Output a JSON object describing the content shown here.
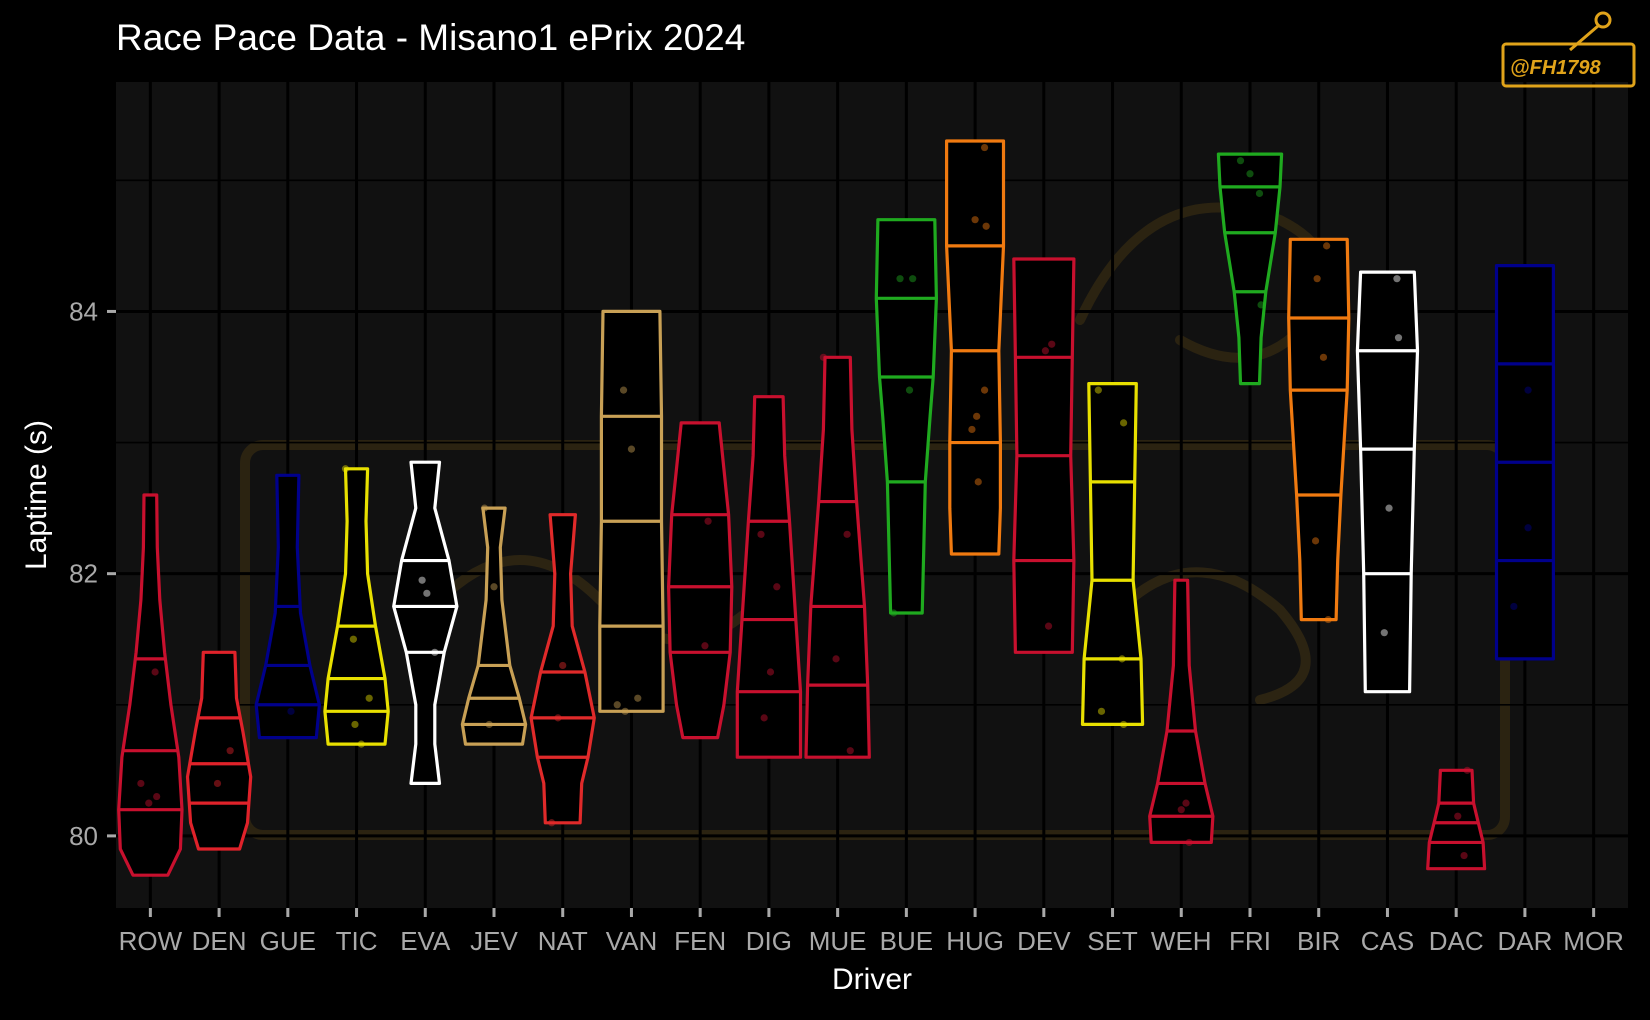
{
  "chart_data": {
    "type": "violin",
    "title": "Race Pace Data - Misano1 ePrix 2024",
    "xlabel": "Driver",
    "ylabel": "Laptime (s)",
    "ylim": [
      79.45,
      85.75
    ],
    "yticks": [
      80,
      82,
      84
    ],
    "grid": true,
    "legend": "none",
    "watermark": "@FH1798",
    "colors": {
      "background": "#000000",
      "panel": "#111111",
      "grid": "#000000",
      "tick": "#a9a9a9",
      "watermark": "#e0a31a"
    },
    "drivers": [
      {
        "name": "ROW",
        "color": "#c8102e",
        "min": 79.7,
        "max": 82.6,
        "q1": 80.2,
        "median": 80.65,
        "q3": 81.35,
        "profile": [
          [
            79.7,
            0.55
          ],
          [
            79.9,
            0.95
          ],
          [
            80.2,
            1.0
          ],
          [
            80.6,
            0.9
          ],
          [
            81.0,
            0.65
          ],
          [
            81.4,
            0.45
          ],
          [
            81.8,
            0.3
          ],
          [
            82.2,
            0.22
          ],
          [
            82.6,
            0.2
          ]
        ],
        "points": [
          [
            -0.05,
            80.25
          ],
          [
            0.2,
            80.3
          ],
          [
            -0.3,
            80.4
          ],
          [
            0.15,
            81.25
          ]
        ]
      },
      {
        "name": "DEN",
        "color": "#e0222a",
        "min": 79.9,
        "max": 81.4,
        "q1": 80.25,
        "median": 80.55,
        "q3": 80.9,
        "profile": [
          [
            79.9,
            0.65
          ],
          [
            80.1,
            0.9
          ],
          [
            80.45,
            1.0
          ],
          [
            80.8,
            0.75
          ],
          [
            81.05,
            0.55
          ],
          [
            81.4,
            0.5
          ]
        ],
        "points": [
          [
            -0.05,
            80.4
          ],
          [
            0.35,
            80.65
          ]
        ]
      },
      {
        "name": "GUE",
        "color": "#00008b",
        "min": 80.75,
        "max": 82.75,
        "q1": 81.0,
        "median": 81.3,
        "q3": 81.75,
        "profile": [
          [
            80.75,
            0.9
          ],
          [
            81.0,
            1.0
          ],
          [
            81.3,
            0.7
          ],
          [
            81.7,
            0.4
          ],
          [
            82.2,
            0.3
          ],
          [
            82.75,
            0.35
          ]
        ],
        "points": [
          [
            0.1,
            80.95
          ]
        ]
      },
      {
        "name": "TIC",
        "color": "#e8e000",
        "min": 80.7,
        "max": 82.8,
        "q1": 80.95,
        "median": 81.2,
        "q3": 81.6,
        "profile": [
          [
            80.7,
            0.9
          ],
          [
            80.95,
            1.0
          ],
          [
            81.2,
            0.9
          ],
          [
            81.6,
            0.6
          ],
          [
            82.0,
            0.35
          ],
          [
            82.4,
            0.3
          ],
          [
            82.8,
            0.35
          ]
        ],
        "points": [
          [
            -0.35,
            82.8
          ],
          [
            -0.1,
            81.5
          ],
          [
            -0.05,
            80.85
          ],
          [
            0.15,
            80.7
          ],
          [
            0.4,
            81.05
          ]
        ]
      },
      {
        "name": "EVA",
        "color": "#ffffff",
        "min": 80.4,
        "max": 82.85,
        "q1": 81.4,
        "median": 81.75,
        "q3": 82.1,
        "profile": [
          [
            80.4,
            0.45
          ],
          [
            80.7,
            0.3
          ],
          [
            81.0,
            0.3
          ],
          [
            81.4,
            0.6
          ],
          [
            81.75,
            1.0
          ],
          [
            82.1,
            0.75
          ],
          [
            82.5,
            0.3
          ],
          [
            82.85,
            0.45
          ]
        ],
        "points": [
          [
            -0.1,
            81.95
          ],
          [
            0.05,
            81.85
          ],
          [
            0.3,
            81.4
          ]
        ]
      },
      {
        "name": "JEV",
        "color": "#c8a055",
        "min": 80.7,
        "max": 82.5,
        "q1": 80.85,
        "median": 81.05,
        "q3": 81.3,
        "profile": [
          [
            80.7,
            0.9
          ],
          [
            80.85,
            1.0
          ],
          [
            81.05,
            0.8
          ],
          [
            81.3,
            0.5
          ],
          [
            81.8,
            0.25
          ],
          [
            82.2,
            0.2
          ],
          [
            82.5,
            0.35
          ]
        ],
        "points": [
          [
            -0.3,
            82.5
          ],
          [
            -0.15,
            80.85
          ],
          [
            0.0,
            81.9
          ]
        ]
      },
      {
        "name": "NAT",
        "color": "#e02a2a",
        "min": 80.1,
        "max": 82.45,
        "q1": 80.6,
        "median": 80.9,
        "q3": 81.25,
        "profile": [
          [
            80.1,
            0.55
          ],
          [
            80.4,
            0.6
          ],
          [
            80.6,
            0.8
          ],
          [
            80.9,
            1.0
          ],
          [
            81.25,
            0.7
          ],
          [
            81.6,
            0.3
          ],
          [
            82.0,
            0.25
          ],
          [
            82.45,
            0.4
          ]
        ],
        "points": [
          [
            -0.35,
            80.1
          ],
          [
            -0.15,
            80.9
          ],
          [
            0.0,
            81.3
          ]
        ]
      },
      {
        "name": "VAN",
        "color": "#c8a055",
        "min": 80.95,
        "max": 84.0,
        "q1": 81.6,
        "median": 82.4,
        "q3": 83.2,
        "profile": [
          [
            80.95,
            1.0
          ],
          [
            81.6,
            1.0
          ],
          [
            82.4,
            0.95
          ],
          [
            83.2,
            0.95
          ],
          [
            84.0,
            0.9
          ]
        ],
        "points": [
          [
            -0.45,
            81.0
          ],
          [
            0.2,
            81.05
          ],
          [
            -0.2,
            80.95
          ],
          [
            -0.25,
            83.4
          ],
          [
            0.0,
            82.95
          ]
        ]
      },
      {
        "name": "FEN",
        "color": "#c8102e",
        "min": 80.75,
        "max": 83.15,
        "q1": 81.4,
        "median": 81.9,
        "q3": 82.45,
        "profile": [
          [
            80.75,
            0.55
          ],
          [
            81.0,
            0.75
          ],
          [
            81.4,
            0.95
          ],
          [
            81.9,
            1.0
          ],
          [
            82.45,
            0.9
          ],
          [
            82.8,
            0.75
          ],
          [
            83.15,
            0.6
          ]
        ],
        "points": [
          [
            0.15,
            81.45
          ],
          [
            0.25,
            82.4
          ]
        ]
      },
      {
        "name": "DIG",
        "color": "#c8102e",
        "min": 80.6,
        "max": 83.35,
        "q1": 81.1,
        "median": 81.65,
        "q3": 82.4,
        "profile": [
          [
            80.6,
            1.0
          ],
          [
            81.1,
            1.0
          ],
          [
            81.65,
            0.85
          ],
          [
            82.4,
            0.65
          ],
          [
            82.9,
            0.5
          ],
          [
            83.35,
            0.45
          ]
        ],
        "points": [
          [
            -0.15,
            80.9
          ],
          [
            0.05,
            81.25
          ],
          [
            -0.25,
            82.3
          ],
          [
            0.25,
            81.9
          ]
        ]
      },
      {
        "name": "MUE",
        "color": "#c8102e",
        "min": 80.6,
        "max": 83.65,
        "q1": 81.15,
        "median": 81.75,
        "q3": 82.55,
        "profile": [
          [
            80.6,
            1.0
          ],
          [
            81.15,
            0.95
          ],
          [
            81.75,
            0.85
          ],
          [
            82.55,
            0.6
          ],
          [
            83.1,
            0.45
          ],
          [
            83.65,
            0.4
          ]
        ],
        "points": [
          [
            -0.45,
            83.65
          ],
          [
            -0.05,
            81.35
          ],
          [
            0.3,
            82.3
          ],
          [
            0.4,
            80.65
          ]
        ]
      },
      {
        "name": "BUE",
        "color": "#1faa1f",
        "min": 81.7,
        "max": 84.7,
        "q1": 82.7,
        "median": 83.5,
        "q3": 84.1,
        "profile": [
          [
            81.7,
            0.5
          ],
          [
            82.2,
            0.55
          ],
          [
            82.7,
            0.6
          ],
          [
            83.2,
            0.75
          ],
          [
            83.5,
            0.85
          ],
          [
            84.1,
            0.95
          ],
          [
            84.7,
            0.9
          ]
        ],
        "points": [
          [
            -0.4,
            81.7
          ],
          [
            0.1,
            83.4
          ],
          [
            0.2,
            84.25
          ],
          [
            -0.2,
            84.25
          ]
        ]
      },
      {
        "name": "HUG",
        "color": "#f07a10",
        "min": 82.15,
        "max": 85.3,
        "q1": 83.0,
        "median": 83.7,
        "q3": 84.5,
        "profile": [
          [
            82.15,
            0.75
          ],
          [
            82.5,
            0.8
          ],
          [
            83.0,
            0.8
          ],
          [
            83.7,
            0.75
          ],
          [
            84.5,
            0.9
          ],
          [
            85.3,
            0.9
          ]
        ],
        "points": [
          [
            -0.1,
            83.1
          ],
          [
            0.1,
            82.7
          ],
          [
            0.3,
            83.4
          ],
          [
            0.05,
            83.2
          ],
          [
            0.0,
            84.7
          ],
          [
            0.35,
            84.65
          ],
          [
            0.3,
            85.25
          ]
        ]
      },
      {
        "name": "DEV",
        "color": "#c8102e",
        "min": 81.4,
        "max": 84.4,
        "q1": 82.1,
        "median": 82.9,
        "q3": 83.65,
        "profile": [
          [
            81.4,
            0.9
          ],
          [
            82.1,
            0.95
          ],
          [
            82.9,
            0.85
          ],
          [
            83.65,
            0.9
          ],
          [
            84.4,
            0.95
          ]
        ],
        "points": [
          [
            0.15,
            81.6
          ],
          [
            0.25,
            83.75
          ],
          [
            0.05,
            83.7
          ]
        ]
      },
      {
        "name": "SET",
        "color": "#e8e000",
        "min": 80.85,
        "max": 83.45,
        "q1": 81.35,
        "median": 81.95,
        "q3": 82.7,
        "profile": [
          [
            80.85,
            0.95
          ],
          [
            81.35,
            0.9
          ],
          [
            81.95,
            0.65
          ],
          [
            82.7,
            0.7
          ],
          [
            83.45,
            0.75
          ]
        ],
        "points": [
          [
            -0.35,
            80.95
          ],
          [
            0.3,
            81.35
          ],
          [
            0.35,
            83.15
          ],
          [
            0.35,
            80.85
          ],
          [
            -0.45,
            83.4
          ]
        ]
      },
      {
        "name": "WEH",
        "color": "#c8102e",
        "min": 79.95,
        "max": 81.95,
        "q1": 80.15,
        "median": 80.4,
        "q3": 80.8,
        "profile": [
          [
            79.95,
            0.95
          ],
          [
            80.15,
            1.0
          ],
          [
            80.4,
            0.75
          ],
          [
            80.8,
            0.45
          ],
          [
            81.3,
            0.25
          ],
          [
            81.95,
            0.2
          ]
        ],
        "points": [
          [
            0.0,
            80.2
          ],
          [
            0.15,
            80.25
          ],
          [
            0.25,
            79.95
          ]
        ]
      },
      {
        "name": "FRI",
        "color": "#1faa1f",
        "min": 83.45,
        "max": 85.2,
        "q1": 84.15,
        "median": 84.6,
        "q3": 84.95,
        "profile": [
          [
            83.45,
            0.3
          ],
          [
            83.8,
            0.35
          ],
          [
            84.15,
            0.5
          ],
          [
            84.6,
            0.8
          ],
          [
            84.95,
            0.95
          ],
          [
            85.2,
            1.0
          ]
        ],
        "points": [
          [
            -0.3,
            85.15
          ],
          [
            0.0,
            85.05
          ],
          [
            0.3,
            84.9
          ],
          [
            0.35,
            84.05
          ]
        ]
      },
      {
        "name": "BIR",
        "color": "#f07a10",
        "min": 81.65,
        "max": 84.55,
        "q1": 82.6,
        "median": 83.4,
        "q3": 83.95,
        "profile": [
          [
            81.65,
            0.55
          ],
          [
            82.1,
            0.6
          ],
          [
            82.6,
            0.7
          ],
          [
            83.4,
            0.9
          ],
          [
            83.95,
            0.95
          ],
          [
            84.55,
            0.9
          ]
        ],
        "points": [
          [
            -0.05,
            84.25
          ],
          [
            0.15,
            83.65
          ],
          [
            0.3,
            81.65
          ],
          [
            -0.1,
            82.25
          ],
          [
            0.25,
            84.5
          ]
        ]
      },
      {
        "name": "CAS",
        "color": "#ffffff",
        "min": 81.1,
        "max": 84.3,
        "q1": 82.0,
        "median": 82.95,
        "q3": 83.7,
        "profile": [
          [
            81.1,
            0.7
          ],
          [
            82.0,
            0.75
          ],
          [
            82.95,
            0.85
          ],
          [
            83.7,
            0.95
          ],
          [
            84.3,
            0.85
          ]
        ],
        "points": [
          [
            -0.1,
            81.55
          ],
          [
            0.3,
            84.25
          ],
          [
            0.35,
            83.8
          ],
          [
            0.05,
            82.5
          ]
        ]
      },
      {
        "name": "DAC",
        "color": "#c8102e",
        "min": 79.75,
        "max": 80.5,
        "q1": 79.95,
        "median": 80.1,
        "q3": 80.25,
        "profile": [
          [
            79.75,
            0.9
          ],
          [
            79.95,
            0.85
          ],
          [
            80.1,
            0.7
          ],
          [
            80.25,
            0.55
          ],
          [
            80.5,
            0.5
          ]
        ],
        "points": [
          [
            0.05,
            80.15
          ],
          [
            0.25,
            79.85
          ],
          [
            0.35,
            80.5
          ]
        ]
      },
      {
        "name": "DAR",
        "color": "#00008b",
        "min": 81.35,
        "max": 84.35,
        "q1": 82.1,
        "median": 82.85,
        "q3": 83.6,
        "profile": [
          [
            81.35,
            0.9
          ],
          [
            82.1,
            0.9
          ],
          [
            82.85,
            0.9
          ],
          [
            83.6,
            0.9
          ],
          [
            84.35,
            0.9
          ]
        ],
        "points": [
          [
            -0.35,
            81.75
          ],
          [
            0.1,
            82.35
          ],
          [
            0.1,
            83.4
          ]
        ]
      },
      {
        "name": "MOR",
        "color": "#c8102e",
        "min": null,
        "max": null,
        "q1": null,
        "median": null,
        "q3": null,
        "profile": [],
        "points": []
      }
    ]
  }
}
